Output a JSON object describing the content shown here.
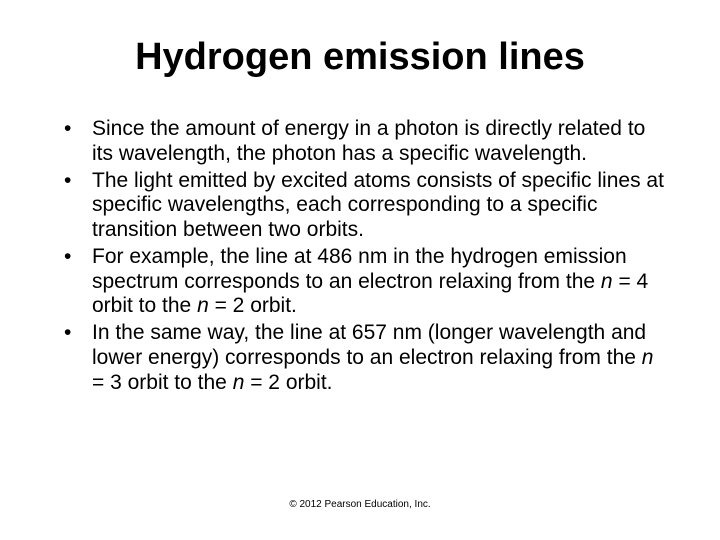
{
  "title": "Hydrogen emission lines",
  "bullets": [
    {
      "frags": [
        {
          "t": "Since the amount of energy in a photon is directly related to its wavelength, the photon has a specific wavelength."
        }
      ]
    },
    {
      "frags": [
        {
          "t": "The light emitted by excited atoms consists of specific lines at specific wavelengths, each corresponding to a specific transition between two orbits."
        }
      ]
    },
    {
      "frags": [
        {
          "t": "For example, the line at 486 nm in the hydrogen emission spectrum corresponds to an electron relaxing from the "
        },
        {
          "t": "n",
          "i": true
        },
        {
          "t": " = 4 orbit to the "
        },
        {
          "t": "n",
          "i": true
        },
        {
          "t": " = 2 orbit."
        }
      ]
    },
    {
      "frags": [
        {
          "t": "In the same way, the line at 657 nm (longer wavelength and lower energy) corresponds to an electron relaxing from the "
        },
        {
          "t": "n",
          "i": true
        },
        {
          "t": " = 3 orbit to the "
        },
        {
          "t": "n",
          "i": true
        },
        {
          "t": " = 2 orbit."
        }
      ]
    }
  ],
  "copyright": "© 2012 Pearson Education, Inc.",
  "colors": {
    "background": "#ffffff",
    "text": "#000000"
  },
  "typography": {
    "title_fontsize": 38,
    "body_fontsize": 21,
    "copyright_fontsize": 10,
    "font_family": "Arial"
  }
}
